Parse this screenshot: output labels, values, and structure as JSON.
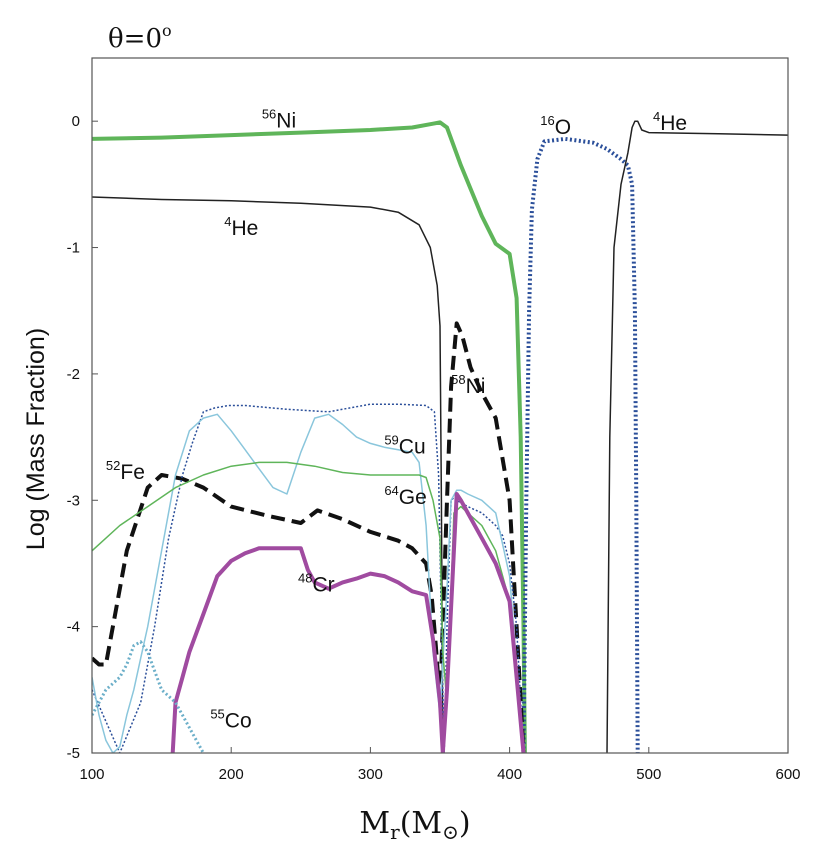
{
  "chart_data": {
    "type": "line",
    "title": "θ=0",
    "title_superscript": "o",
    "xlabel": "Mr(M⊙)",
    "xlabel_main": "M",
    "xlabel_sub": "r",
    "xlabel_paren": "(M",
    "xlabel_sun": "⊙",
    "xlabel_close": ")",
    "ylabel": "Log (Mass Fraction)",
    "xlim": [
      100,
      600
    ],
    "ylim": [
      -5,
      0.5
    ],
    "xticks": [
      100,
      200,
      300,
      400,
      500,
      600
    ],
    "yticks": [
      0,
      -1,
      -2,
      -3,
      -4,
      -5
    ],
    "grid": false,
    "series": [
      {
        "name": "56Ni",
        "color": "#5fb55a",
        "style": "solid",
        "width": 4,
        "x": [
          100,
          150,
          200,
          250,
          300,
          330,
          345,
          350,
          355,
          365,
          380,
          390,
          400,
          405,
          408,
          410,
          411
        ],
        "y": [
          -0.14,
          -0.13,
          -0.11,
          -0.09,
          -0.07,
          -0.05,
          -0.02,
          -0.01,
          -0.05,
          -0.35,
          -0.75,
          -0.97,
          -1.05,
          -1.4,
          -2.5,
          -4,
          -5
        ]
      },
      {
        "name": "16O",
        "color": "#2b4f9a",
        "style": "dotted",
        "width": 4,
        "x": [
          410,
          412,
          414,
          416,
          420,
          425,
          440,
          460,
          470,
          480,
          485,
          488,
          490,
          491,
          492
        ],
        "y": [
          -5,
          -3,
          -1.5,
          -0.7,
          -0.3,
          -0.16,
          -0.14,
          -0.17,
          -0.22,
          -0.3,
          -0.35,
          -0.5,
          -1.5,
          -3,
          -5
        ]
      },
      {
        "name": "4He",
        "color": "#222222",
        "style": "solid",
        "width": 1.5,
        "x": [
          100,
          150,
          200,
          250,
          300,
          320,
          335,
          343,
          348,
          350,
          351,
          352
        ],
        "y": [
          -0.6,
          -0.62,
          -0.63,
          -0.65,
          -0.68,
          -0.72,
          -0.82,
          -1.0,
          -1.3,
          -1.62,
          -3,
          -5
        ]
      },
      {
        "name": "4He (outer)",
        "color": "#222222",
        "style": "solid",
        "width": 1.5,
        "x": [
          470,
          472,
          475,
          480,
          485,
          488,
          490,
          492,
          495,
          500,
          550,
          600
        ],
        "y": [
          -5,
          -2.5,
          -1.0,
          -0.5,
          -0.25,
          -0.05,
          0.0,
          0.0,
          -0.07,
          -0.09,
          -0.1,
          -0.11
        ]
      },
      {
        "name": "52Fe",
        "color": "#111111",
        "style": "dashed",
        "width": 4,
        "x": [
          100,
          105,
          110,
          125,
          140,
          150,
          165,
          180,
          200,
          225,
          250,
          262,
          280,
          300,
          320,
          330,
          340,
          344,
          347,
          349,
          351,
          355,
          358,
          362,
          366,
          372,
          380,
          390,
          400,
          405,
          410
        ],
        "y": [
          -4.25,
          -4.3,
          -4.3,
          -3.4,
          -2.9,
          -2.8,
          -2.83,
          -2.9,
          -3.05,
          -3.12,
          -3.18,
          -3.08,
          -3.15,
          -3.25,
          -3.32,
          -3.38,
          -3.5,
          -3.75,
          -4.15,
          -4.45,
          -4.3,
          -3.0,
          -2.1,
          -1.6,
          -1.7,
          -1.95,
          -2.15,
          -2.35,
          -3.0,
          -4.0,
          -5
        ]
      },
      {
        "name": "58Ni",
        "color": "#2b4f9a",
        "style": "dotted",
        "width": 1.5,
        "x": [
          100,
          120,
          135,
          145,
          155,
          165,
          172,
          180,
          188,
          198,
          210,
          240,
          270,
          285,
          300,
          320,
          340,
          346,
          349,
          351,
          353,
          355,
          358,
          360,
          362,
          365,
          370,
          380,
          390,
          395,
          400,
          405,
          410
        ],
        "y": [
          -4.5,
          -5,
          -4.6,
          -4.0,
          -3.3,
          -2.8,
          -2.55,
          -2.3,
          -2.27,
          -2.25,
          -2.25,
          -2.28,
          -2.3,
          -2.27,
          -2.24,
          -2.24,
          -2.25,
          -2.3,
          -2.8,
          -4.0,
          -5,
          -4.0,
          -3.0,
          -2.98,
          -3.0,
          -3.02,
          -3.05,
          -3.1,
          -3.2,
          -3.28,
          -3.5,
          -4.0,
          -5
        ]
      },
      {
        "name": "59Cu",
        "color": "#8ac6dc",
        "style": "solid",
        "width": 1.5,
        "x": [
          100,
          105,
          110,
          115,
          120,
          125,
          130,
          135,
          140,
          150,
          160,
          170,
          180,
          190,
          200,
          210,
          220,
          230,
          240,
          250,
          260,
          270,
          280,
          290,
          300,
          310,
          320,
          330,
          335,
          340,
          345,
          350,
          355,
          358,
          362,
          365,
          370,
          380,
          390,
          400,
          405,
          410
        ],
        "y": [
          -4.4,
          -4.7,
          -4.9,
          -5,
          -4.95,
          -4.7,
          -4.5,
          -4.25,
          -4.0,
          -3.4,
          -2.8,
          -2.45,
          -2.35,
          -2.32,
          -2.45,
          -2.6,
          -2.75,
          -2.9,
          -2.95,
          -2.62,
          -2.35,
          -2.32,
          -2.4,
          -2.5,
          -2.55,
          -2.58,
          -2.6,
          -2.62,
          -2.7,
          -3.2,
          -4.2,
          -4.7,
          -3.7,
          -3.0,
          -2.92,
          -2.92,
          -2.95,
          -3.0,
          -3.1,
          -3.6,
          -4.3,
          -5
        ]
      },
      {
        "name": "64Ge",
        "color": "#5fb55a",
        "style": "solid",
        "width": 1.5,
        "x": [
          100,
          120,
          140,
          160,
          180,
          200,
          220,
          240,
          260,
          280,
          300,
          320,
          335,
          340,
          345,
          350,
          352,
          355,
          360,
          365,
          370,
          380,
          390,
          400,
          405,
          410
        ],
        "y": [
          -3.4,
          -3.2,
          -3.05,
          -2.9,
          -2.8,
          -2.73,
          -2.7,
          -2.7,
          -2.73,
          -2.78,
          -2.8,
          -2.8,
          -2.8,
          -2.82,
          -3.0,
          -3.3,
          -4.2,
          -4.6,
          -3.1,
          -3.05,
          -3.1,
          -3.2,
          -3.4,
          -3.8,
          -4.3,
          -5
        ]
      },
      {
        "name": "48Cr",
        "color": "#a04ba0",
        "style": "solid",
        "width": 4,
        "x": [
          158,
          160,
          165,
          170,
          180,
          190,
          200,
          210,
          220,
          230,
          240,
          250,
          255,
          260,
          270,
          280,
          290,
          300,
          310,
          320,
          330,
          340,
          345,
          350,
          352,
          355,
          360,
          362,
          365,
          370,
          380,
          390,
          400,
          405,
          410
        ],
        "y": [
          -5,
          -4.6,
          -4.4,
          -4.2,
          -3.9,
          -3.6,
          -3.48,
          -3.42,
          -3.38,
          -3.38,
          -3.38,
          -3.38,
          -3.55,
          -3.65,
          -3.7,
          -3.65,
          -3.62,
          -3.58,
          -3.6,
          -3.65,
          -3.72,
          -3.75,
          -4.1,
          -4.6,
          -5,
          -4.5,
          -3.4,
          -2.95,
          -3.0,
          -3.1,
          -3.3,
          -3.5,
          -3.8,
          -4.4,
          -5
        ]
      },
      {
        "name": "55Co",
        "color": "#6cafc9",
        "style": "dotted",
        "width": 3,
        "x": [
          100,
          105,
          110,
          115,
          120,
          125,
          130,
          135,
          140,
          145,
          150,
          155,
          160,
          165,
          170,
          175,
          180
        ],
        "y": [
          -4.7,
          -4.6,
          -4.5,
          -4.45,
          -4.4,
          -4.3,
          -4.15,
          -4.12,
          -4.2,
          -4.35,
          -4.5,
          -4.55,
          -4.6,
          -4.7,
          -4.8,
          -4.9,
          -5
        ]
      }
    ],
    "annotations": [
      {
        "sup": "56",
        "text": "Ni",
        "x": 222,
        "y": -0.05
      },
      {
        "sup": "4",
        "text": "He",
        "x": 195,
        "y": -0.9
      },
      {
        "sup": "16",
        "text": "O",
        "x": 422,
        "y": -0.1
      },
      {
        "sup": "4",
        "text": "He",
        "x": 503,
        "y": -0.07
      },
      {
        "sup": "58",
        "text": "Ni",
        "x": 358,
        "y": -2.15
      },
      {
        "sup": "59",
        "text": "Cu",
        "x": 310,
        "y": -2.63
      },
      {
        "sup": "52",
        "text": "Fe",
        "x": 110,
        "y": -2.83
      },
      {
        "sup": "64",
        "text": "Ge",
        "x": 310,
        "y": -3.03
      },
      {
        "sup": "48",
        "text": "Cr",
        "x": 248,
        "y": -3.72
      },
      {
        "sup": "55",
        "text": "Co",
        "x": 185,
        "y": -4.8
      }
    ]
  }
}
